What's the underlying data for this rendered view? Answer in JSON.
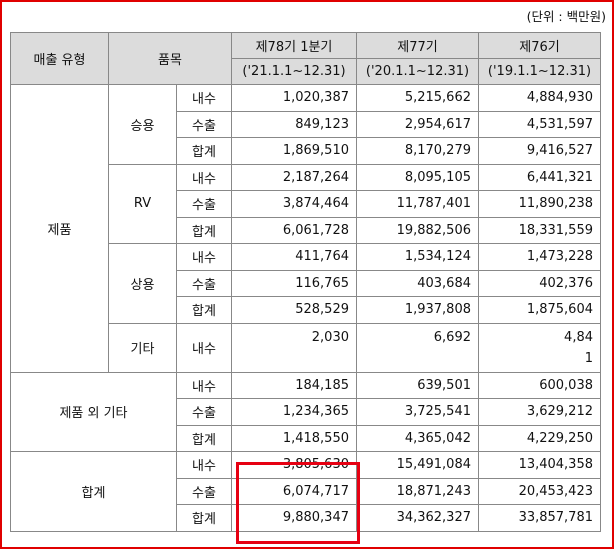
{
  "unit_note": "(단위 : 백만원)",
  "header": {
    "type": "매출 유형",
    "item": "품목",
    "p78": "제78기 1분기",
    "p78_range": "('21.1.1~12.31)",
    "p77": "제77기",
    "p77_range": "('20.1.1~12.31)",
    "p76": "제76기",
    "p76_range": "('19.1.1~12.31)"
  },
  "sections": {
    "product": "제품",
    "other": "제품 외 기타",
    "total": "합계"
  },
  "groups": {
    "passenger": "승용",
    "rv": "RV",
    "commercial": "상용",
    "etc": "기타"
  },
  "rows": [
    {
      "sub": "내수",
      "v78": "1,020,387",
      "v77": "5,215,662",
      "v76": "4,884,930"
    },
    {
      "sub": "수출",
      "v78": "849,123",
      "v77": "2,954,617",
      "v76": "4,531,597"
    },
    {
      "sub": "합계",
      "v78": "1,869,510",
      "v77": "8,170,279",
      "v76": "9,416,527"
    },
    {
      "sub": "내수",
      "v78": "2,187,264",
      "v77": "8,095,105",
      "v76": "6,441,321"
    },
    {
      "sub": "수출",
      "v78": "3,874,464",
      "v77": "11,787,401",
      "v76": "11,890,238"
    },
    {
      "sub": "합계",
      "v78": "6,061,728",
      "v77": "19,882,506",
      "v76": "18,331,559"
    },
    {
      "sub": "내수",
      "v78": "411,764",
      "v77": "1,534,124",
      "v76": "1,473,228"
    },
    {
      "sub": "수출",
      "v78": "116,765",
      "v77": "403,684",
      "v76": "402,376"
    },
    {
      "sub": "합계",
      "v78": "528,529",
      "v77": "1,937,808",
      "v76": "1,875,604"
    },
    {
      "sub": "내수",
      "v78": "2,030",
      "v77": "6,692",
      "v76a": "4,84",
      "v76b": "1"
    },
    {
      "sub": "내수",
      "v78": "184,185",
      "v77": "639,501",
      "v76": "600,038"
    },
    {
      "sub": "수출",
      "v78": "1,234,365",
      "v77": "3,725,541",
      "v76": "3,629,212"
    },
    {
      "sub": "합계",
      "v78": "1,418,550",
      "v77": "4,365,042",
      "v76": "4,229,250"
    },
    {
      "sub": "내수",
      "v78": "3,805,630",
      "v77": "15,491,084",
      "v76": "13,404,358"
    },
    {
      "sub": "수출",
      "v78": "6,074,717",
      "v77": "18,871,243",
      "v76": "20,453,423"
    },
    {
      "sub": "합계",
      "v78": "9,880,347",
      "v77": "34,362,327",
      "v76": "33,857,781"
    }
  ],
  "colors": {
    "highlight": "#e60012",
    "header_bg": "#dcdcdc",
    "grid": "#888888"
  }
}
